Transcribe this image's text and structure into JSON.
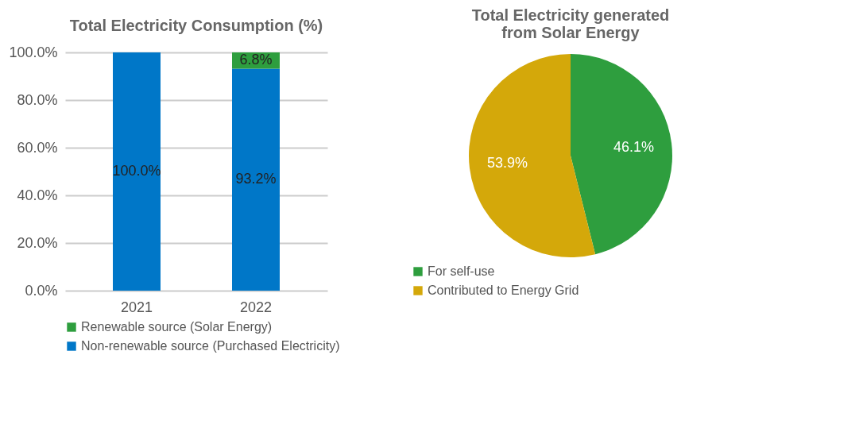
{
  "chart_data": [
    {
      "type": "bar",
      "title": "Total Electricity Consumption (%)",
      "categories": [
        "2021",
        "2022"
      ],
      "stacked": true,
      "series": [
        {
          "name": "Non-renewable source (Purchased Electricity)",
          "color": "#0077c8",
          "values": [
            100,
            93.2
          ],
          "value_labels": [
            "100.0%",
            "93.2%"
          ]
        },
        {
          "name": "Renewable source (Solar Energy)",
          "color": "#2e9e3e",
          "values": [
            0,
            6.8
          ],
          "value_labels": [
            null,
            "6.8%"
          ]
        }
      ],
      "ylim": [
        0,
        100
      ],
      "yticks": [
        {
          "value": 0,
          "label": "0.0%"
        },
        {
          "value": 20,
          "label": "20.0%"
        },
        {
          "value": 40,
          "label": "40.0%"
        },
        {
          "value": 60,
          "label": "60.0%"
        },
        {
          "value": 80,
          "label": "80.0%"
        },
        {
          "value": 100,
          "label": "100.0%"
        }
      ],
      "grid": "y",
      "legend": "bottom"
    },
    {
      "type": "pie",
      "title": "Total Electricity generated\nfrom Solar Energy",
      "categories": [
        "For self-use",
        "Contributed to Energy Grid"
      ],
      "values": [
        46.1,
        53.9
      ],
      "value_labels": [
        "46.1%",
        "53.9%"
      ],
      "colors": [
        "#2e9e3e",
        "#d4a80a"
      ],
      "legend": "bottom"
    }
  ]
}
